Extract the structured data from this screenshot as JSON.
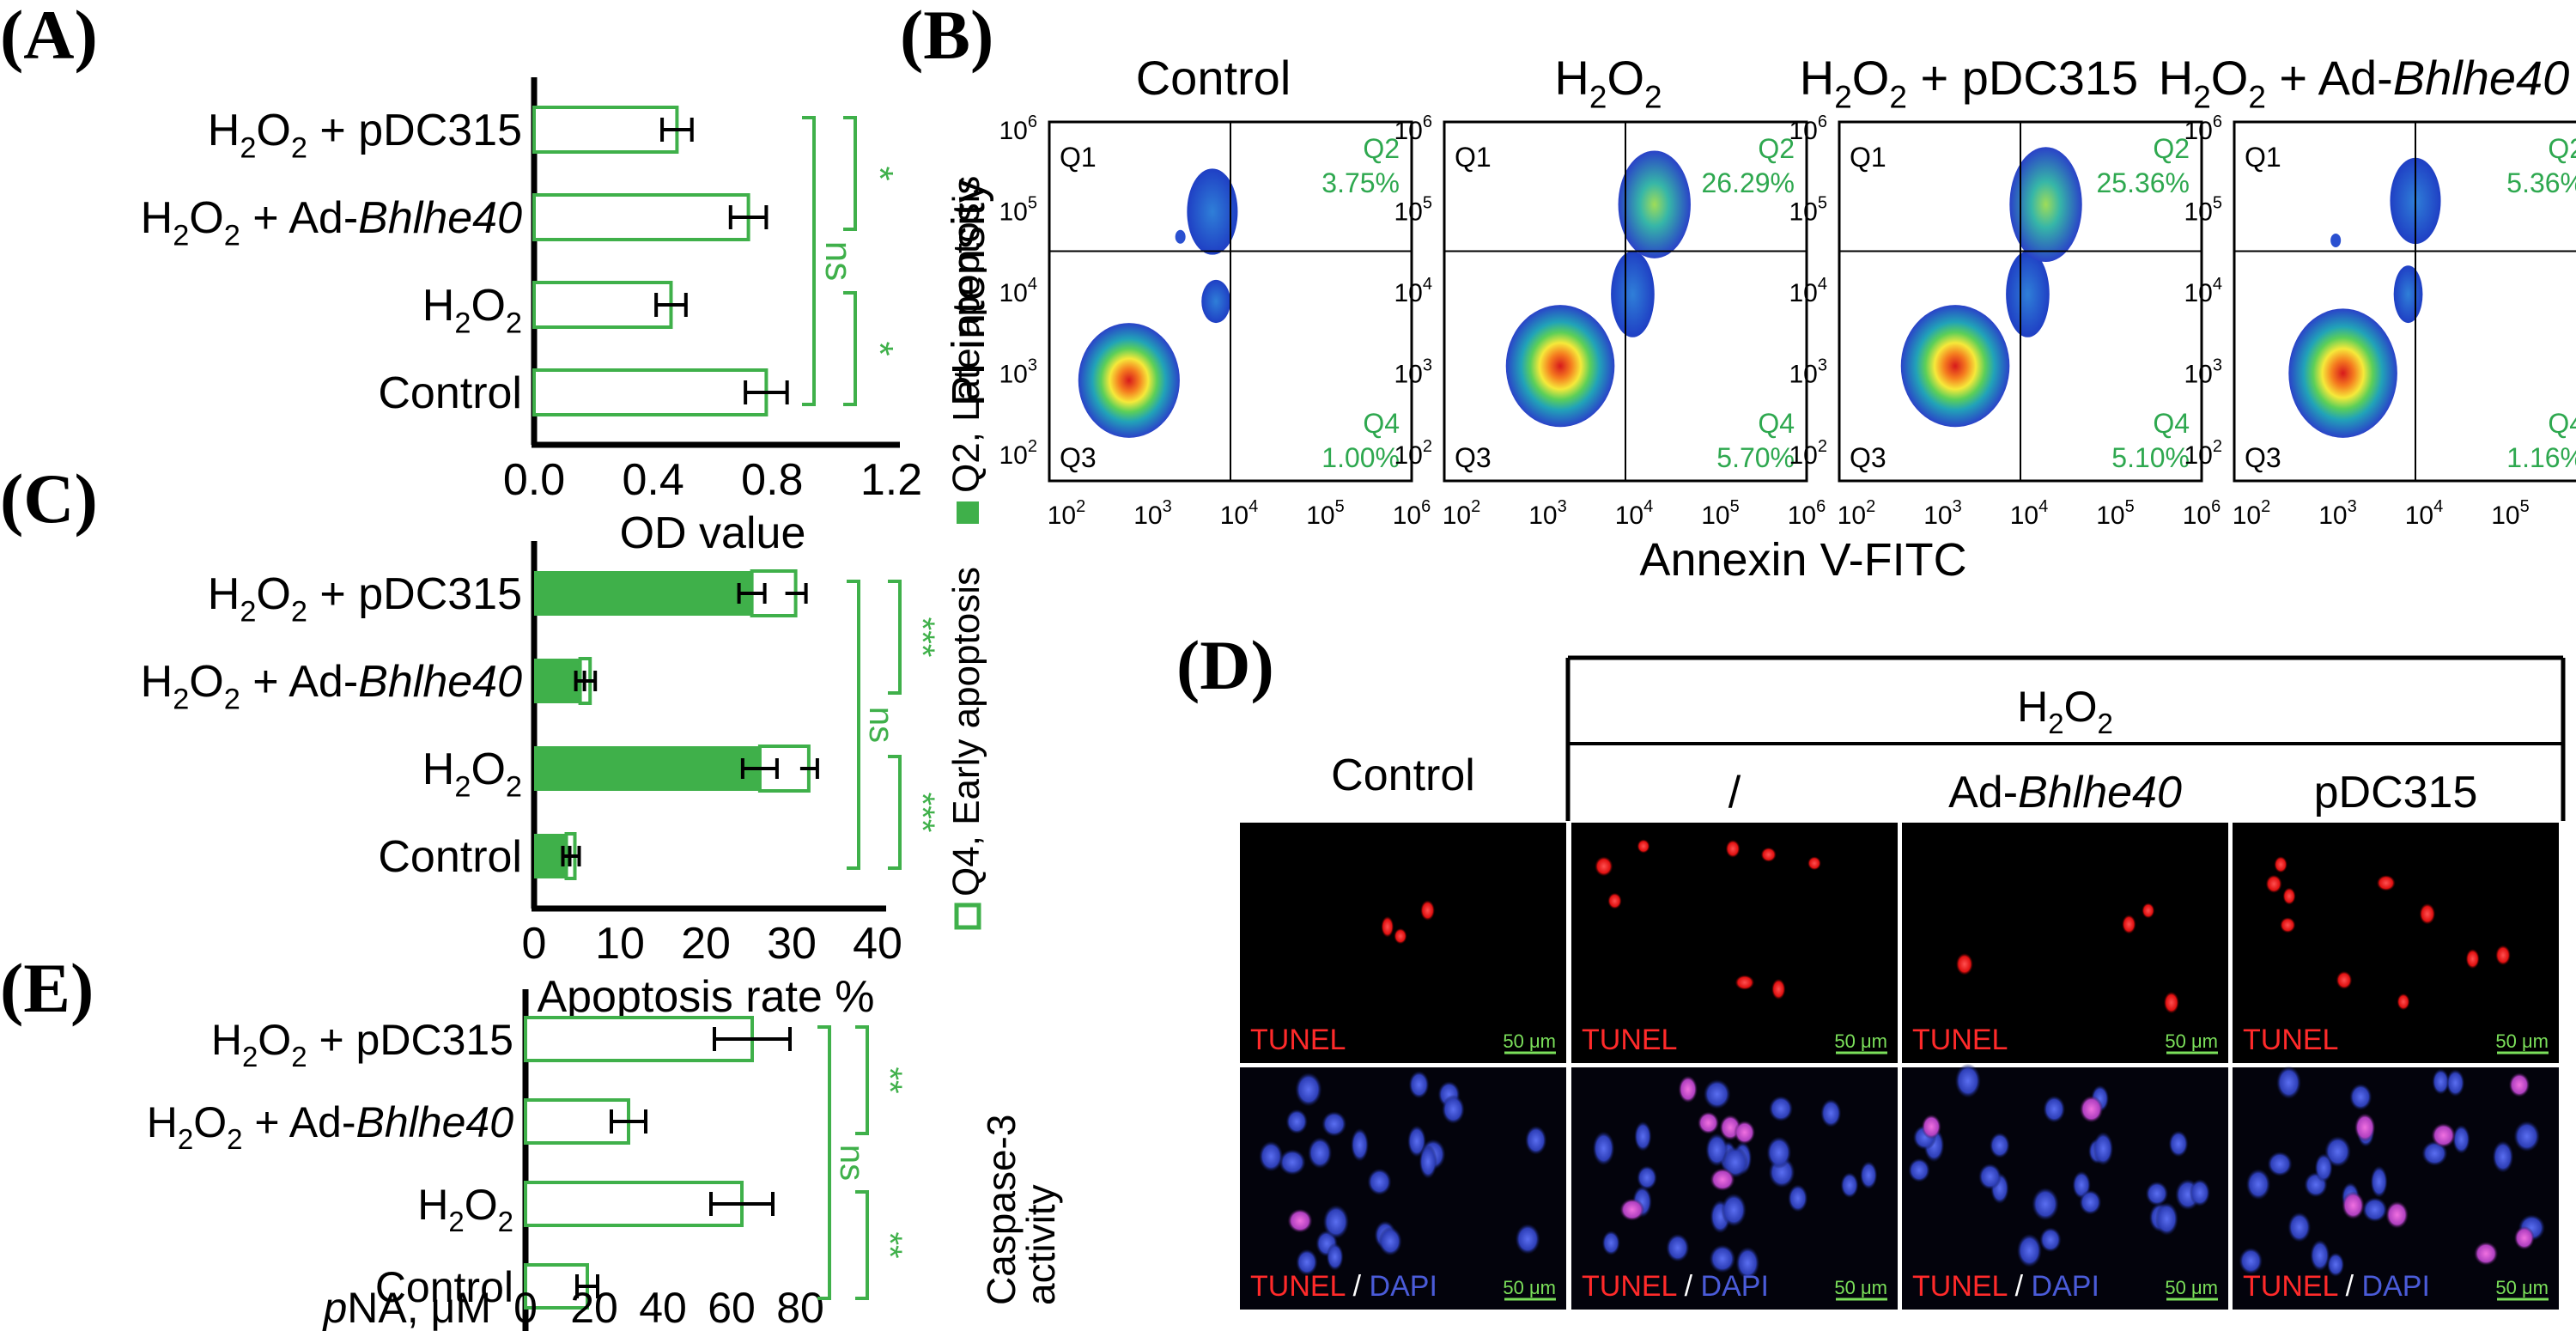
{
  "colors": {
    "green": "#3fb04a",
    "q_green": "#2ea84f",
    "black": "#000000",
    "tunel_red": "#ff2a2a",
    "dapi_blue": "#4a5bd8",
    "scale_green": "#7be05a"
  },
  "panel_labels": {
    "A": "(A)",
    "B": "(B)",
    "C": "(C)",
    "D": "(D)",
    "E": "(E)"
  },
  "groups": {
    "pdc315": {
      "base": "H",
      "sub": "2",
      "mid": "O",
      "sub2": "2",
      "tail": " + pDC315"
    },
    "ad": {
      "base": "H",
      "sub": "2",
      "mid": "O",
      "sub2": "2",
      "tail": " + Ad-",
      "italic": "Bhlhe40"
    },
    "h2o2": {
      "base": "H",
      "sub": "2",
      "mid": "O",
      "sub2": "2"
    },
    "control": "Control"
  },
  "chart_data": [
    {
      "id": "A",
      "type": "bar",
      "orientation": "horizontal",
      "categories": [
        "H2O2 + pDC315",
        "H2O2 + Ad-Bhlhe40",
        "H2O2",
        "Control"
      ],
      "values": [
        0.48,
        0.72,
        0.46,
        0.78
      ],
      "errors": [
        0.05,
        0.06,
        0.05,
        0.07
      ],
      "xlabel": "OD value",
      "xlim": [
        0,
        1.2
      ],
      "xticks": [
        "0.0",
        "0.4",
        "0.8",
        "1.2"
      ],
      "significance": [
        {
          "pair": [
            0,
            1
          ],
          "label": "*"
        },
        {
          "pair": [
            0,
            3
          ],
          "label": "ns"
        },
        {
          "pair": [
            2,
            3
          ],
          "label": "*"
        }
      ]
    },
    {
      "id": "C",
      "type": "bar",
      "orientation": "horizontal",
      "stacked": true,
      "categories": [
        "H2O2 + pDC315",
        "H2O2 + Ad-Bhlhe40",
        "H2O2",
        "Control"
      ],
      "series": [
        {
          "name": "Q2, Late apoptosis",
          "values": [
            25.36,
            5.36,
            26.29,
            3.75
          ]
        },
        {
          "name": "Q4, Early apoptosis",
          "values": [
            5.1,
            1.16,
            5.7,
            1.0
          ]
        }
      ],
      "errors": [
        1.2,
        0.6,
        1.0,
        0.5
      ],
      "inner_errors": [
        1.5,
        0.5,
        2.0,
        0.4
      ],
      "xlabel": "Apoptosis rate %",
      "xlim": [
        0,
        40
      ],
      "xticks": [
        "0",
        "10",
        "20",
        "30",
        "40"
      ],
      "significance": [
        {
          "pair": [
            0,
            1
          ],
          "label": "***"
        },
        {
          "pair": [
            0,
            3
          ],
          "label": "ns"
        },
        {
          "pair": [
            2,
            3
          ],
          "label": "***"
        }
      ],
      "legend": [
        {
          "label": "Q4, Early apoptosis",
          "kind": "outline"
        },
        {
          "label": "Q2, Late apoptosis",
          "kind": "filled"
        }
      ]
    },
    {
      "id": "E",
      "type": "bar",
      "orientation": "horizontal",
      "categories": [
        "H2O2 + pDC315",
        "H2O2 + Ad-Bhlhe40",
        "H2O2",
        "Control"
      ],
      "values": [
        66,
        30,
        63,
        18
      ],
      "errors": [
        11,
        5,
        9,
        3
      ],
      "xlabel_italic": "p",
      "xlabel": "NA, μM",
      "xlim": [
        0,
        80
      ],
      "xticks": [
        "0",
        "20",
        "40",
        "60",
        "80"
      ],
      "ylabel_lines": [
        "Caspase-3",
        "activity"
      ],
      "significance": [
        {
          "pair": [
            0,
            1
          ],
          "label": "**"
        },
        {
          "pair": [
            0,
            3
          ],
          "label": "ns"
        },
        {
          "pair": [
            2,
            3
          ],
          "label": "**"
        }
      ]
    },
    {
      "id": "B",
      "type": "scatter",
      "subtype": "flow-cytometry-density",
      "xlabel": "Annexin V-FITC",
      "ylabel": "PI intensity",
      "axis_scale": "log",
      "tick_exponents": [
        "2",
        "3",
        "4",
        "5",
        "6"
      ],
      "quadrants": [
        "Q1",
        "Q2",
        "Q3",
        "Q4"
      ],
      "plots": [
        {
          "title": "Control",
          "q2": "3.75%",
          "q4": "1.00%"
        },
        {
          "title_base": "H",
          "title_sub": "2",
          "title_mid": "O",
          "title_sub2": "2",
          "title_tail": "",
          "q2": "26.29%",
          "q4": "5.70%"
        },
        {
          "title_base": "H",
          "title_sub": "2",
          "title_mid": "O",
          "title_sub2": "2",
          "title_tail": " + pDC315",
          "q2": "25.36%",
          "q4": "5.10%"
        },
        {
          "title_base": "H",
          "title_sub": "2",
          "title_mid": "O",
          "title_sub2": "2",
          "title_tail": " + Ad-",
          "title_italic": "Bhlhe40",
          "q2": "5.36%",
          "q4": "1.16%"
        }
      ]
    }
  ],
  "panel_d": {
    "header": {
      "base": "H",
      "sub": "2",
      "mid": "O",
      "sub2": "2"
    },
    "columns": [
      "Control",
      "/",
      "Ad-",
      "pDC315"
    ],
    "columns_italic": "Bhlhe40",
    "row1_label": "TUNEL",
    "row2_label_a": "TUNEL",
    "row2_label_sep": " / ",
    "row2_label_b": "DAPI",
    "scale": "50 μm"
  }
}
